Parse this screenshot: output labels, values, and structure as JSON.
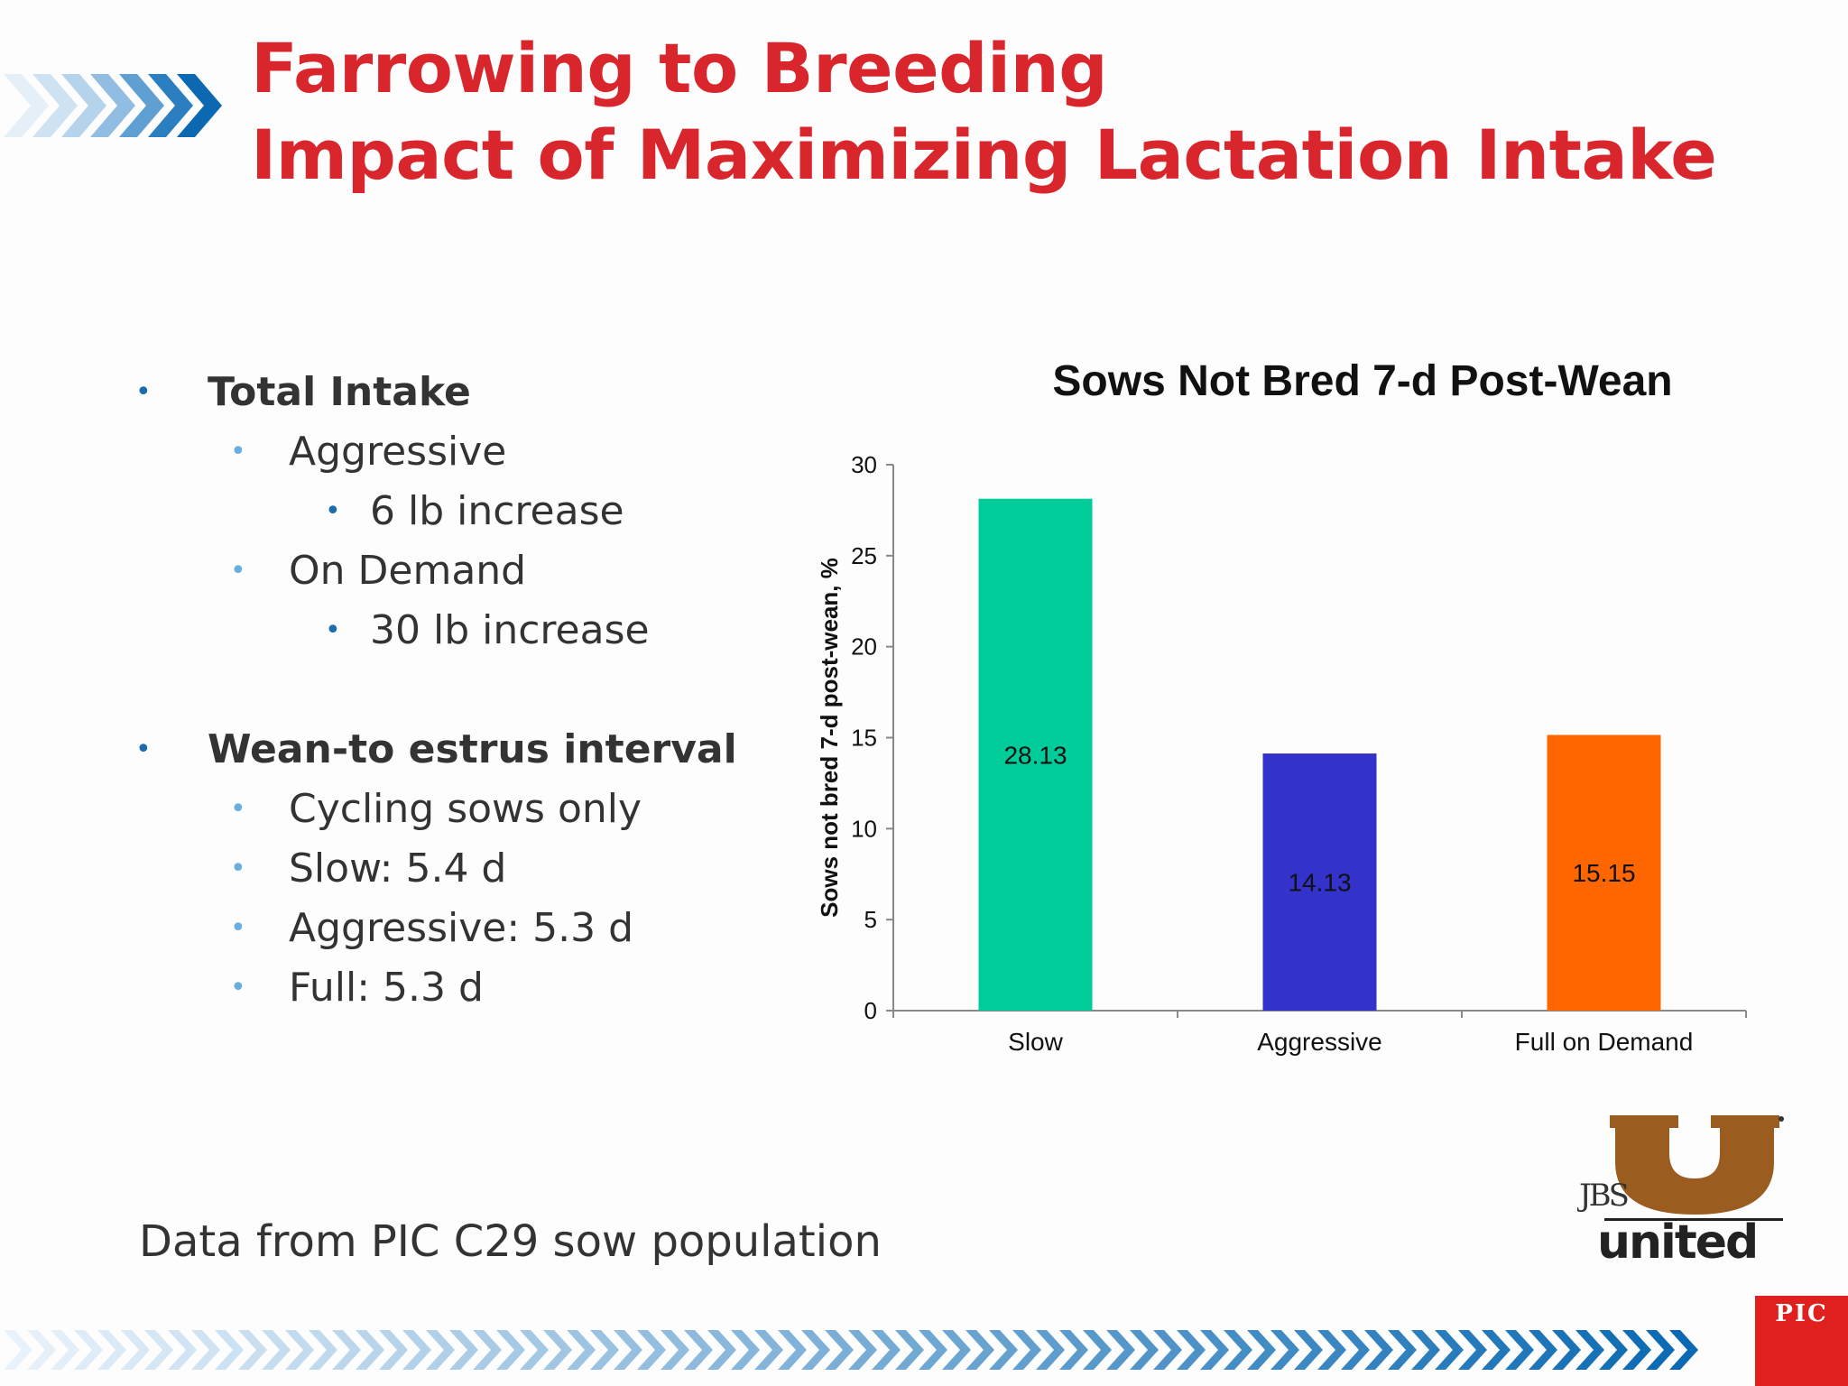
{
  "title": {
    "line1": "Farrowing to Breeding",
    "line2": "Impact of Maximizing Lactation Intake"
  },
  "bullets": [
    {
      "level": 1,
      "text": "Total Intake"
    },
    {
      "level": 2,
      "text": "Aggressive"
    },
    {
      "level": 3,
      "text": "6 lb increase"
    },
    {
      "level": 2,
      "text": "On Demand"
    },
    {
      "level": 3,
      "text": "30 lb increase"
    },
    {
      "level": 1,
      "text": "Wean-to estrus interval"
    },
    {
      "level": 2,
      "text": "Cycling sows only"
    },
    {
      "level": 2,
      "text": "Slow: 5.4 d"
    },
    {
      "level": 2,
      "text": "Aggressive: 5.3 d"
    },
    {
      "level": 2,
      "text": "Full: 5.3 d"
    }
  ],
  "footnote": "Data from PIC C29 sow population",
  "chart_data": {
    "type": "bar",
    "title": "Sows Not Bred 7-d Post-Wean",
    "xlabel": "",
    "ylabel": "Sows not bred 7-d post-wean, %",
    "categories": [
      "Slow",
      "Aggressive",
      "Full on Demand"
    ],
    "values": [
      28.13,
      14.13,
      15.15
    ],
    "data_labels": [
      "28.13",
      "14.13",
      "15.15"
    ],
    "colors": [
      "#00cc99",
      "#3333cc",
      "#ff6600"
    ],
    "ylim": [
      0,
      30
    ],
    "yticks": [
      0,
      5,
      10,
      15,
      20,
      25,
      30
    ],
    "grid": false,
    "legend": "none"
  },
  "logo": {
    "jbs": "JBS",
    "united": "united"
  },
  "pic_badge": "PIC",
  "colors": {
    "title": "#d9262c",
    "bullet_dark": "#1a6bb0",
    "bullet_light": "#6aaee0",
    "pic_red": "#e0201f"
  },
  "icons": {
    "decor_top": "chevron-arrows-icon",
    "decor_bottom": "chevron-arrows-icon"
  }
}
